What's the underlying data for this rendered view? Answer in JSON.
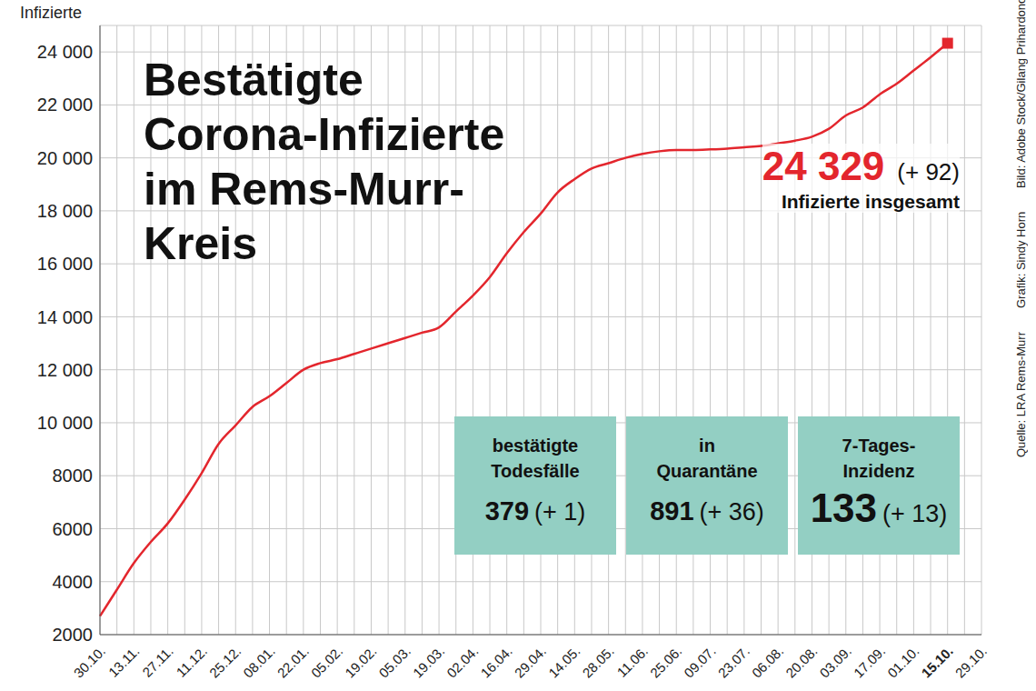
{
  "chart_data": {
    "type": "line",
    "title": [
      "Bestätigte",
      "Corona-Infizierte",
      "im Rems-Murr-",
      "Kreis"
    ],
    "y_label": "Infizierte",
    "categories": [
      "30.10.",
      null,
      "13.11.",
      null,
      "27.11.",
      null,
      "11.12.",
      null,
      "25.12.",
      null,
      "08.01.",
      null,
      "22.01.",
      null,
      "05.02.",
      null,
      "19.02.",
      null,
      "05.03.",
      null,
      "19.03.",
      null,
      "02.04.",
      null,
      "16.04.",
      null,
      "29.04.",
      null,
      "14.05.",
      null,
      "28.05.",
      null,
      "11.06.",
      null,
      "25.06.",
      null,
      "09.07.",
      null,
      "23.07.",
      null,
      "06.08.",
      null,
      "20.08.",
      null,
      "03.09.",
      null,
      "17.09.",
      null,
      "01.10.",
      null,
      "15.10.",
      null,
      "29.10."
    ],
    "bold_categories": [
      "15.10."
    ],
    "values": [
      2700,
      3700,
      4700,
      5500,
      6200,
      7100,
      8100,
      9200,
      9900,
      10600,
      11000,
      11500,
      12000,
      12250,
      12400,
      12600,
      12800,
      13000,
      13200,
      13400,
      13600,
      14200,
      14800,
      15500,
      16400,
      17200,
      17900,
      18700,
      19200,
      19600,
      19800,
      20000,
      20150,
      20250,
      20300,
      20300,
      20320,
      20350,
      20400,
      20450,
      20550,
      20650,
      20800,
      21100,
      21600,
      21900,
      22400,
      22800,
      23300,
      23800,
      24329,
      null,
      null
    ],
    "color": "#e3262d",
    "marker": "square",
    "ylim": [
      2000,
      25000
    ],
    "yticks": [
      {
        "value": 2000,
        "label": "2000"
      },
      {
        "value": 4000,
        "label": "4000"
      },
      {
        "value": 6000,
        "label": "6000"
      },
      {
        "value": 8000,
        "label": "8000"
      },
      {
        "value": 10000,
        "label": "10 000"
      },
      {
        "value": 12000,
        "label": "12 000"
      },
      {
        "value": 14000,
        "label": "14 000"
      },
      {
        "value": 16000,
        "label": "16 000"
      },
      {
        "value": 18000,
        "label": "18 000"
      },
      {
        "value": 20000,
        "label": "20 000"
      },
      {
        "value": 22000,
        "label": "22 000"
      },
      {
        "value": 24000,
        "label": "24 000"
      }
    ],
    "grid": true,
    "total": {
      "value": 24329,
      "label": "24 329",
      "change": 92,
      "change_label": "(+ 92)",
      "caption": "Infizierte insgesamt"
    },
    "stats": [
      {
        "label": [
          "bestätigte",
          "Todesfälle"
        ],
        "value": 379,
        "change": 1,
        "change_label": "(+ 1)"
      },
      {
        "label": [
          "in",
          "Quarantäne"
        ],
        "value": 891,
        "change": 36,
        "change_label": "(+ 36)"
      },
      {
        "label": [
          "7-Tages-",
          "Inzidenz"
        ],
        "value": 133,
        "change": 13,
        "change_label": "(+ 13)"
      }
    ],
    "credits": [
      "Quelle: LRA Rems-Murr",
      "Grafik: Sindy Horn",
      "Bild: Adobe Stock/Gilang Prihardono"
    ]
  }
}
